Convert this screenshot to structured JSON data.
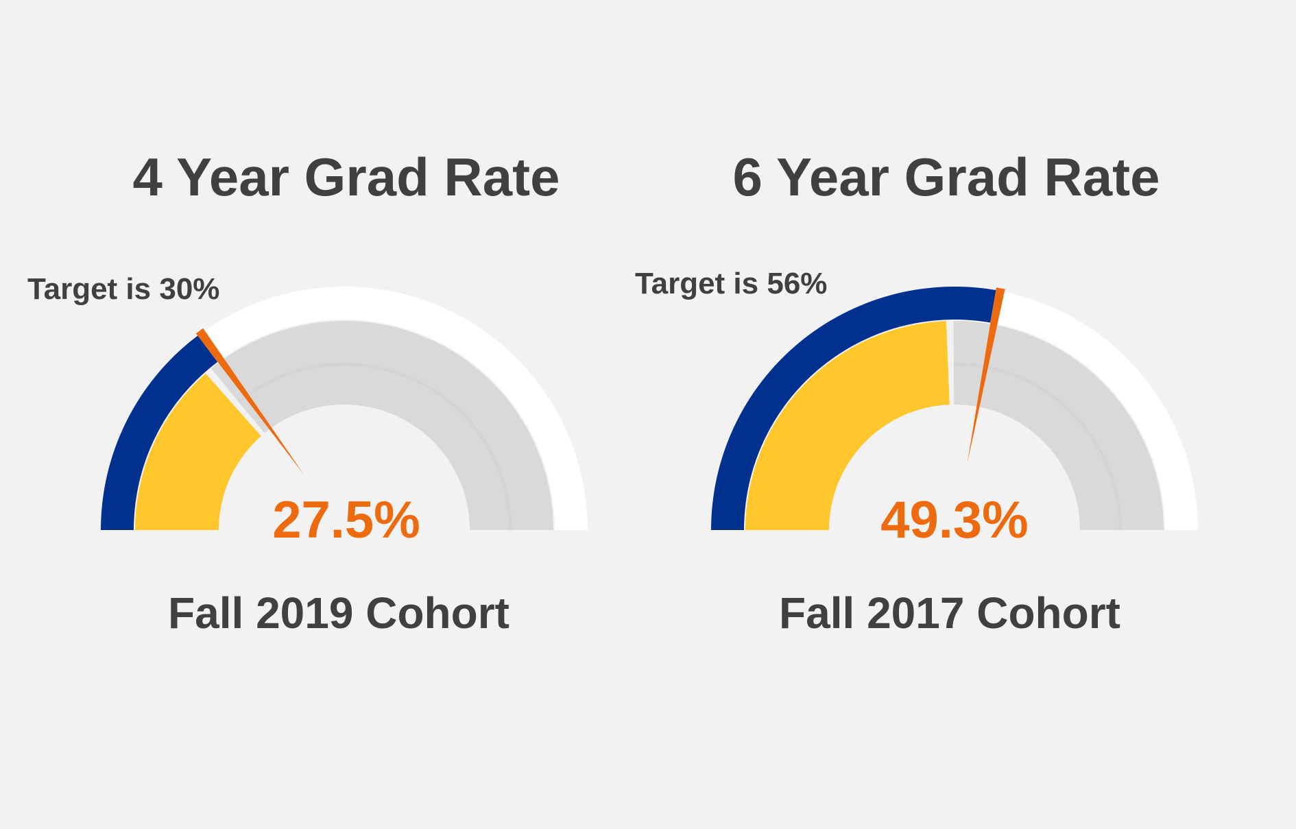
{
  "chart_data": [
    {
      "type": "gauge",
      "title": "4 Year Grad Rate",
      "value": 27.5,
      "value_label": "27.5%",
      "target": 30,
      "target_label": "Target is 30%",
      "range": [
        0,
        100
      ],
      "cohort_label": "Fall 2019 Cohort"
    },
    {
      "type": "gauge",
      "title": "6 Year Grad Rate",
      "value": 49.3,
      "value_label": "49.3%",
      "target": 56,
      "target_label": "Target is 56%",
      "range": [
        0,
        100
      ],
      "cohort_label": "Fall 2017 Cohort"
    }
  ],
  "colors": {
    "background": "#f2f2f2",
    "target_band": "#00318f",
    "outer_track": "#ffffff",
    "value_fill": "#ffc72c",
    "inner_track": "#d9d9d9",
    "needle": "#ee6a0e",
    "value_text": "#ee6a0e",
    "label_text": "#404040"
  }
}
